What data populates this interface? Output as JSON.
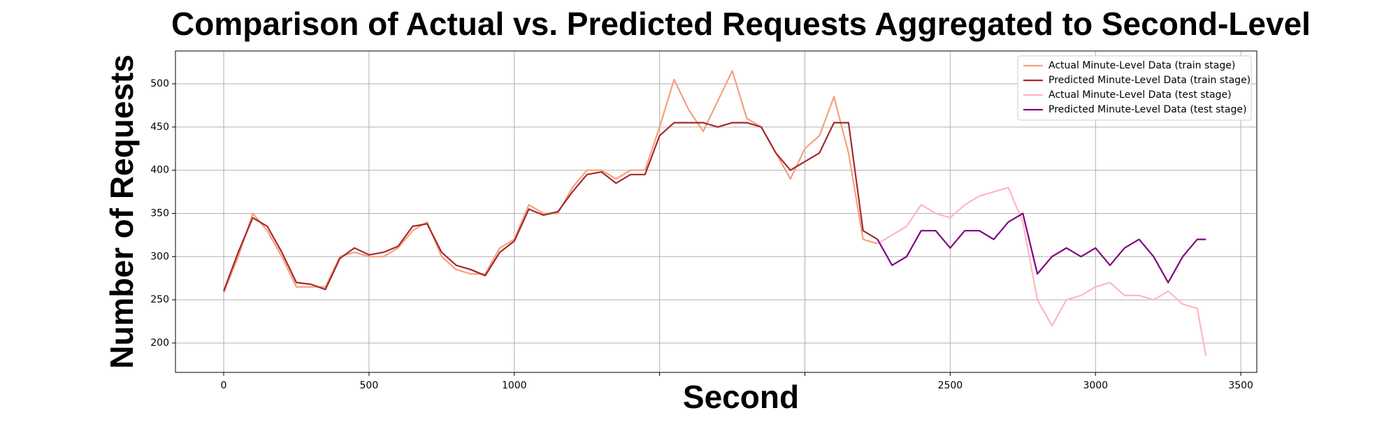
{
  "chart_data": {
    "type": "line",
    "title": "Comparison of Actual vs. Predicted Requests Aggregated to Second-Level",
    "x_label": "Second",
    "y_label": "Number of Requests",
    "xlim": [
      -166,
      3555
    ],
    "ylim": [
      166,
      538
    ],
    "xticks": [
      0,
      500,
      1000,
      {
        "value": 1500,
        "label": null
      },
      {
        "value": 2000,
        "label": null
      },
      2500,
      3000,
      3500
    ],
    "yticks": [
      200,
      250,
      300,
      350,
      400,
      450,
      500
    ],
    "grid": true,
    "legend": "upper right",
    "series": [
      {
        "name": "Actual Minute-Level Data (train stage)",
        "color": "#f4a07e",
        "x": [
          0,
          50,
          100,
          150,
          200,
          250,
          300,
          350,
          400,
          450,
          500,
          550,
          600,
          650,
          700,
          750,
          800,
          850,
          900,
          950,
          1000,
          1050,
          1100,
          1150,
          1200,
          1250,
          1300,
          1350,
          1400,
          1450,
          1500,
          1550,
          1600,
          1650,
          1700,
          1750,
          1800,
          1850,
          1900,
          1950,
          2000,
          2050,
          2100,
          2150,
          2200,
          2250
        ],
        "values": [
          258,
          300,
          350,
          330,
          300,
          265,
          265,
          265,
          300,
          305,
          300,
          300,
          310,
          330,
          340,
          300,
          285,
          280,
          280,
          310,
          320,
          360,
          350,
          350,
          380,
          400,
          400,
          390,
          400,
          400,
          450,
          505,
          470,
          445,
          480,
          515,
          460,
          450,
          420,
          390,
          425,
          440,
          485,
          420,
          320,
          315
        ]
      },
      {
        "name": "Predicted Minute-Level Data (train stage)",
        "color": "#a52a2a",
        "x": [
          0,
          50,
          100,
          150,
          200,
          250,
          300,
          350,
          400,
          450,
          500,
          550,
          600,
          650,
          700,
          750,
          800,
          850,
          900,
          950,
          1000,
          1050,
          1100,
          1150,
          1200,
          1250,
          1300,
          1350,
          1400,
          1450,
          1500,
          1550,
          1600,
          1650,
          1700,
          1750,
          1800,
          1850,
          1900,
          1950,
          2000,
          2050,
          2100,
          2150,
          2200,
          2250
        ],
        "values": [
          260,
          305,
          345,
          335,
          305,
          270,
          268,
          262,
          298,
          310,
          302,
          305,
          312,
          335,
          338,
          305,
          290,
          285,
          278,
          305,
          318,
          355,
          348,
          352,
          375,
          395,
          398,
          385,
          395,
          395,
          440,
          455,
          455,
          455,
          450,
          455,
          455,
          450,
          420,
          400,
          410,
          420,
          455,
          455,
          330,
          320
        ]
      },
      {
        "name": "Actual Minute-Level Data (test stage)",
        "color": "#ffb6c1",
        "x": [
          2250,
          2300,
          2350,
          2400,
          2450,
          2500,
          2550,
          2600,
          2650,
          2700,
          2750,
          2800,
          2850,
          2900,
          2950,
          3000,
          3050,
          3100,
          3150,
          3200,
          3250,
          3300,
          3350,
          3380
        ],
        "values": [
          315,
          325,
          335,
          360,
          350,
          345,
          360,
          370,
          375,
          380,
          340,
          250,
          220,
          250,
          255,
          265,
          270,
          255,
          255,
          250,
          260,
          245,
          240,
          185
        ]
      },
      {
        "name": "Predicted Minute-Level Data (test stage)",
        "color": "#800080",
        "x": [
          2250,
          2300,
          2350,
          2400,
          2450,
          2500,
          2550,
          2600,
          2650,
          2700,
          2750,
          2800,
          2850,
          2900,
          2950,
          3000,
          3050,
          3100,
          3150,
          3200,
          3250,
          3300,
          3350,
          3380
        ],
        "values": [
          320,
          290,
          300,
          330,
          330,
          310,
          330,
          330,
          320,
          340,
          350,
          280,
          300,
          310,
          300,
          310,
          290,
          310,
          320,
          300,
          270,
          300,
          320,
          320
        ]
      }
    ]
  }
}
